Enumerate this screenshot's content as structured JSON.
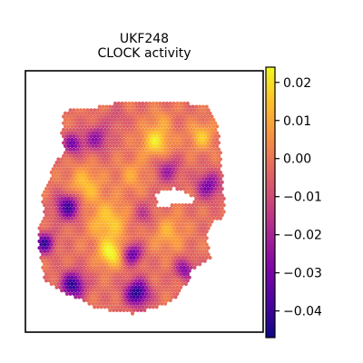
{
  "chart_data": {
    "type": "heatmap",
    "subtype": "spatial-spot-map",
    "title_lines": [
      "UKF248",
      "CLOCK activity"
    ],
    "colormap": "plasma",
    "colorbar": {
      "min": -0.047,
      "max": 0.024,
      "ticks": [
        0.02,
        0.01,
        0.0,
        -0.01,
        -0.02,
        -0.03,
        -0.04
      ],
      "tick_labels": [
        "0.02",
        "0.01",
        "0.00",
        "−0.01",
        "−0.02",
        "−0.03",
        "−0.04"
      ]
    },
    "axes": {
      "xticks": false,
      "yticks": false,
      "frame": true
    },
    "tissue": {
      "outline": [
        [
          0.4,
          0.12
        ],
        [
          0.66,
          0.12
        ],
        [
          0.78,
          0.14
        ],
        [
          0.81,
          0.22
        ],
        [
          0.83,
          0.4
        ],
        [
          0.84,
          0.56
        ],
        [
          0.79,
          0.58
        ],
        [
          0.76,
          0.62
        ],
        [
          0.78,
          0.72
        ],
        [
          0.7,
          0.76
        ],
        [
          0.69,
          0.8
        ],
        [
          0.62,
          0.88
        ],
        [
          0.57,
          0.9
        ],
        [
          0.45,
          0.93
        ],
        [
          0.3,
          0.91
        ],
        [
          0.24,
          0.88
        ],
        [
          0.14,
          0.84
        ],
        [
          0.08,
          0.8
        ],
        [
          0.06,
          0.7
        ],
        [
          0.05,
          0.62
        ],
        [
          0.08,
          0.55
        ],
        [
          0.07,
          0.48
        ],
        [
          0.1,
          0.42
        ],
        [
          0.12,
          0.35
        ],
        [
          0.17,
          0.31
        ],
        [
          0.15,
          0.24
        ],
        [
          0.16,
          0.16
        ],
        [
          0.22,
          0.14
        ],
        [
          0.3,
          0.14
        ]
      ],
      "holes": [
        [
          [
            0.55,
            0.47
          ],
          [
            0.63,
            0.45
          ],
          [
            0.69,
            0.47
          ],
          [
            0.72,
            0.5
          ],
          [
            0.64,
            0.51
          ],
          [
            0.56,
            0.52
          ]
        ]
      ],
      "blobs": [
        {
          "x": 0.55,
          "y": 0.27,
          "r": 0.06,
          "value": 0.02
        },
        {
          "x": 0.35,
          "y": 0.58,
          "r": 0.08,
          "value": 0.016
        },
        {
          "x": 0.36,
          "y": 0.7,
          "r": 0.05,
          "value": 0.024
        },
        {
          "x": 0.25,
          "y": 0.44,
          "r": 0.07,
          "value": 0.014
        },
        {
          "x": 0.74,
          "y": 0.25,
          "r": 0.05,
          "value": 0.015
        },
        {
          "x": 0.45,
          "y": 0.4,
          "r": 0.06,
          "value": 0.008
        },
        {
          "x": 0.6,
          "y": 0.62,
          "r": 0.07,
          "value": 0.01
        },
        {
          "x": 0.18,
          "y": 0.52,
          "r": 0.05,
          "value": -0.04
        },
        {
          "x": 0.2,
          "y": 0.82,
          "r": 0.05,
          "value": -0.042
        },
        {
          "x": 0.47,
          "y": 0.85,
          "r": 0.05,
          "value": -0.045
        },
        {
          "x": 0.3,
          "y": 0.26,
          "r": 0.05,
          "value": -0.025
        },
        {
          "x": 0.2,
          "y": 0.28,
          "r": 0.04,
          "value": -0.03
        },
        {
          "x": 0.77,
          "y": 0.44,
          "r": 0.05,
          "value": -0.03
        },
        {
          "x": 0.6,
          "y": 0.38,
          "r": 0.05,
          "value": -0.022
        },
        {
          "x": 0.45,
          "y": 0.7,
          "r": 0.04,
          "value": -0.035
        },
        {
          "x": 0.67,
          "y": 0.76,
          "r": 0.04,
          "value": -0.028
        },
        {
          "x": 0.08,
          "y": 0.66,
          "r": 0.04,
          "value": -0.04
        },
        {
          "x": 0.38,
          "y": 0.18,
          "r": 0.04,
          "value": -0.01
        },
        {
          "x": 0.57,
          "y": 0.18,
          "r": 0.04,
          "value": 0.005
        },
        {
          "x": 0.5,
          "y": 0.55,
          "r": 0.05,
          "value": -0.015
        }
      ],
      "base_value": -0.002
    }
  }
}
